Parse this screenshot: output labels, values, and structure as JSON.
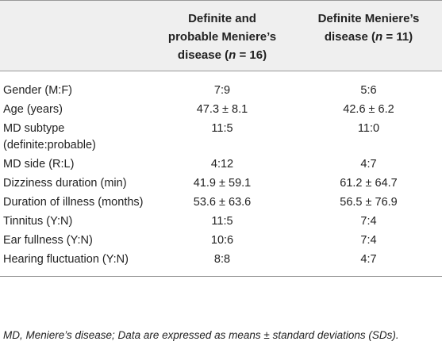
{
  "table": {
    "header": [
      [
        "Definite and probable Meniere’s disease (",
        "n",
        " = 16)"
      ],
      [
        "Definite Meniere’s disease (",
        "n",
        " = 11)"
      ]
    ],
    "rows": [
      [
        "Gender (M:F)",
        "7:9",
        "5:6"
      ],
      [
        "Age (years)",
        "47.3 ± 8.1",
        "42.6 ± 6.2"
      ],
      [
        "MD subtype (definite:probable)",
        "11:5",
        "11:0"
      ],
      [
        "MD side (R:L)",
        "4:12",
        "4:7"
      ],
      [
        "Dizziness duration (min)",
        "41.9 ± 59.1",
        "61.2 ± 64.7"
      ],
      [
        "Duration of illness (months)",
        "53.6 ± 63.6",
        "56.5 ± 76.9"
      ],
      [
        "Tinnitus (Y:N)",
        "11:5",
        "7:4"
      ],
      [
        "Ear fullness (Y:N)",
        "10:6",
        "7:4"
      ],
      [
        "Hearing fluctuation (Y:N)",
        "8:8",
        "4:7"
      ]
    ]
  },
  "footnote": "MD, Meniere’s disease; Data are expressed as means ± standard deviations (SDs)."
}
